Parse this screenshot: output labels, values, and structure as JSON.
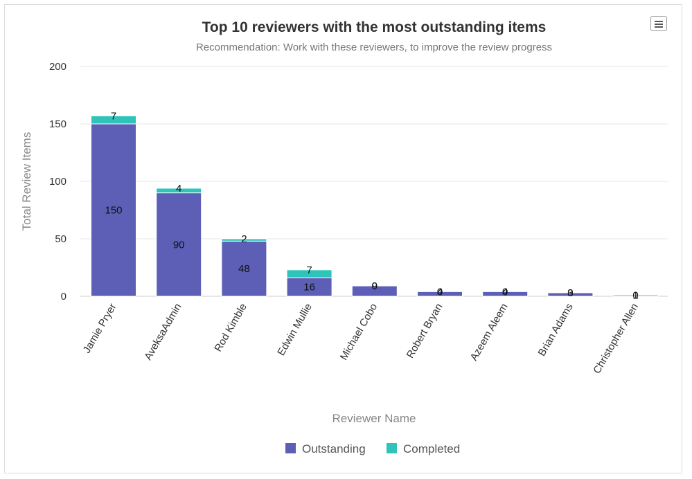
{
  "chart_data": {
    "type": "bar",
    "stacked": true,
    "title": "Top 10 reviewers with the most outstanding items",
    "subtitle": "Recommendation: Work with these reviewers, to improve the review progress",
    "xlabel": "Reviewer Name",
    "ylabel": "Total Review Items",
    "ylim": [
      0,
      200
    ],
    "yticks": [
      0,
      50,
      100,
      150,
      200
    ],
    "grid": true,
    "legend_position": "bottom",
    "categories": [
      "Jamie Pryer",
      "AveksaAdmin",
      "Rod Kimble",
      "Edwin Mullie",
      "Michael Cobo",
      "Robert Bryan",
      "Azeem Aleem",
      "Brian Adams",
      "Christopher Allen"
    ],
    "series": [
      {
        "name": "Outstanding",
        "color": "#5c5fb5",
        "values": [
          150,
          90,
          48,
          16,
          9,
          4,
          4,
          3,
          1
        ]
      },
      {
        "name": "Completed",
        "color": "#2ec4b9",
        "values": [
          7,
          4,
          2,
          7,
          0,
          0,
          0,
          0,
          0
        ]
      }
    ]
  },
  "ui": {
    "menu_icon": "hamburger-menu-icon"
  }
}
